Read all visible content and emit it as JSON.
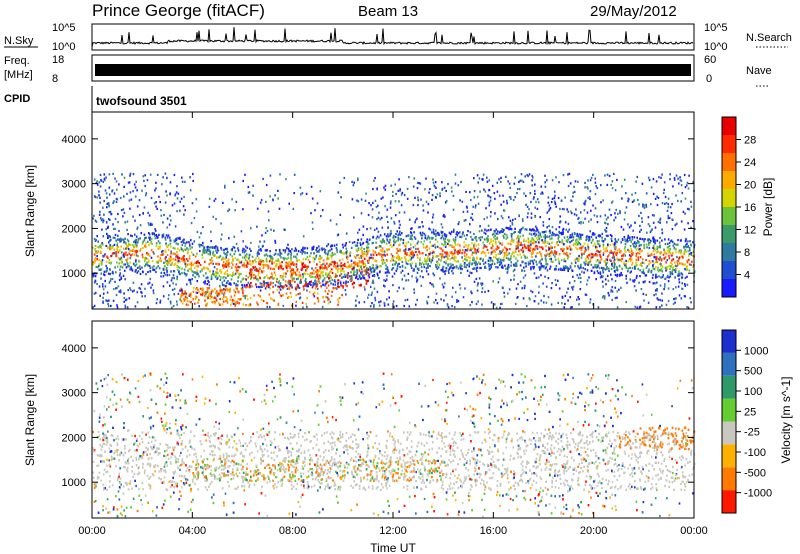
{
  "header": {
    "station": "Prince George (fitACF)",
    "beam": "Beam 13",
    "date": "29/May/2012"
  },
  "strips": {
    "nsky": {
      "label": "N.Sky",
      "tick_top": "10^5",
      "tick_bottom": "10^0",
      "right_tick_top": "10^5",
      "right_tick_bottom": "10^0",
      "right_label": "N.Search"
    },
    "freq": {
      "label_line1": "Freq.",
      "label_line2": "[MHz]",
      "tick_top": "18",
      "tick_bottom": "8",
      "right_tick_top": "60",
      "right_tick_bottom": "0",
      "right_label": "Nave"
    },
    "cpid": {
      "label": "CPID",
      "value": "twofsound 3501"
    }
  },
  "chart_data": [
    {
      "type": "heatmap",
      "panel": "power",
      "ylabel": "Slant Range [km]",
      "yticks": [
        "1000",
        "2000",
        "3000",
        "4000"
      ],
      "ylim": [
        200,
        4600
      ],
      "xlim_hours": [
        0,
        24
      ],
      "colorbar_label": "Power [dB]",
      "colorbar_ticks": [
        "4",
        "8",
        "12",
        "16",
        "20",
        "24",
        "28"
      ],
      "colorbar_range": [
        0,
        32
      ],
      "colors": [
        "#1a1aff",
        "#1e4fd0",
        "#2f7a9f",
        "#3a9a6a",
        "#6cc23a",
        "#d4d400",
        "#ffaa00",
        "#ff7000",
        "#ff2b00",
        "#e80000"
      ],
      "features": [
        {
          "name": "main band",
          "x_hours": [
            0,
            24
          ],
          "center_km": [
            1400,
            1500,
            1200,
            1100,
            1200,
            1500,
            1500,
            1600,
            1500,
            1400,
            1300
          ],
          "max_power_db": 28
        },
        {
          "name": "strong echoes",
          "x_hours": [
            6,
            11
          ],
          "center_km": 1000,
          "max_power_db": 30
        },
        {
          "name": "near-range band",
          "x_hours": [
            3.5,
            10
          ],
          "center_km": 500,
          "max_power_db": 26
        }
      ]
    },
    {
      "type": "heatmap",
      "panel": "velocity",
      "ylabel": "Slant Range [km]",
      "yticks": [
        "1000",
        "2000",
        "3000",
        "4000"
      ],
      "ylim": [
        200,
        4600
      ],
      "xlim_hours": [
        0,
        24
      ],
      "xticks": [
        "00:00",
        "04:00",
        "08:00",
        "12:00",
        "16:00",
        "20:00",
        "00:00"
      ],
      "xlabel": "Time UT",
      "colorbar_label": "Velocity [m s^-1]",
      "colorbar_ticks": [
        "1000",
        "500",
        "100",
        "25",
        "-25",
        "-100",
        "-500",
        "-1000"
      ],
      "colors": [
        "#1e2fcf",
        "#2e72bd",
        "#2e9a6a",
        "#66cc33",
        "#c8c8c0",
        "#ffb000",
        "#ff7a00",
        "#ff1800"
      ],
      "features": [
        {
          "name": "ground scatter",
          "x_hours": [
            0,
            24
          ],
          "center_km": 1500,
          "velocity_ms": 0
        },
        {
          "name": "flow region",
          "x_hours": [
            4,
            14
          ],
          "center_km": 1300,
          "velocity_ms": -200
        },
        {
          "name": "late evening",
          "x_hours": [
            21,
            24
          ],
          "center_km": 2000,
          "velocity_ms": -300
        }
      ]
    }
  ]
}
